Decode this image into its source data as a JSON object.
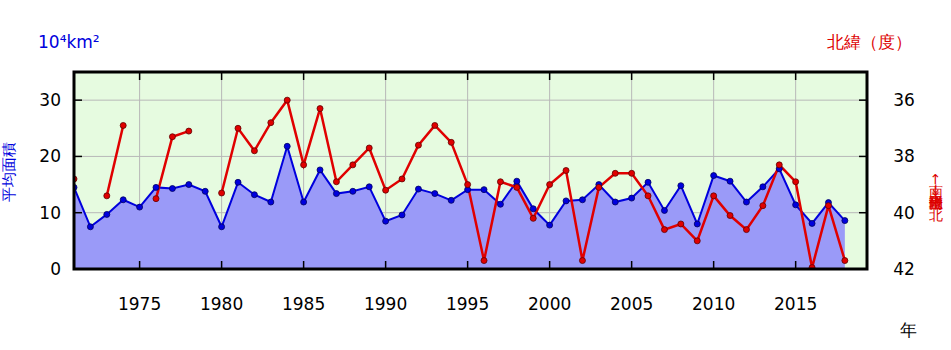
{
  "chart_data": {
    "type": "line",
    "x_label": "年",
    "y_label": "平均面積",
    "y_unit": "10⁴km²",
    "y2_label": "南←平均南限位置→北",
    "y2_unit": "北緯（度）",
    "x": [
      1971,
      1972,
      1973,
      1974,
      1975,
      1976,
      1977,
      1978,
      1979,
      1980,
      1981,
      1982,
      1983,
      1984,
      1985,
      1986,
      1987,
      1988,
      1989,
      1990,
      1991,
      1992,
      1993,
      1994,
      1995,
      1996,
      1997,
      1998,
      1999,
      2000,
      2001,
      2002,
      2003,
      2004,
      2005,
      2006,
      2007,
      2008,
      2009,
      2010,
      2011,
      2012,
      2013,
      2014,
      2015,
      2016,
      2017,
      2018
    ],
    "xlim": [
      1971,
      2019.35
    ],
    "xticks": [
      1975,
      1980,
      1985,
      1990,
      1995,
      2000,
      2005,
      2010,
      2015
    ],
    "ylim": [
      0,
      35
    ],
    "yticks": [
      0,
      10,
      20,
      30
    ],
    "y2lim": [
      42,
      35
    ],
    "y2ticks": [
      36,
      38,
      40,
      42
    ],
    "grid": true,
    "series": [
      {
        "name": "平均面積",
        "type": "area",
        "axis": "y",
        "color": "#0000dd",
        "marker": "circle",
        "values": [
          14.5,
          7.5,
          9.7,
          12.3,
          11.0,
          14.5,
          14.3,
          15.0,
          13.8,
          7.5,
          15.4,
          13.2,
          11.9,
          21.8,
          11.9,
          17.6,
          13.4,
          13.8,
          14.6,
          8.5,
          9.6,
          14.2,
          13.4,
          12.2,
          14.1,
          14.1,
          11.5,
          15.6,
          10.7,
          7.8,
          12.1,
          12.3,
          15.0,
          11.9,
          12.6,
          15.4,
          10.4,
          14.8,
          8.0,
          16.6,
          15.6,
          11.9,
          14.6,
          17.8,
          11.4,
          8.1,
          11.8,
          8.6
        ]
      },
      {
        "name": "平均南限位置",
        "type": "line",
        "axis": "y2",
        "color": "#e00000",
        "marker": "circle",
        "values": [
          38.8,
          null,
          39.4,
          36.9,
          null,
          39.5,
          37.3,
          37.1,
          null,
          39.3,
          37.0,
          37.8,
          36.8,
          36.0,
          38.3,
          36.3,
          38.9,
          38.3,
          37.7,
          39.2,
          38.8,
          37.6,
          36.9,
          37.5,
          39.0,
          41.7,
          38.9,
          39.1,
          40.2,
          39.0,
          38.5,
          41.7,
          39.1,
          38.6,
          38.6,
          39.4,
          40.6,
          40.4,
          41.0,
          39.4,
          40.1,
          40.6,
          39.75,
          38.3,
          38.9,
          41.95,
          39.75,
          41.7
        ]
      }
    ]
  }
}
